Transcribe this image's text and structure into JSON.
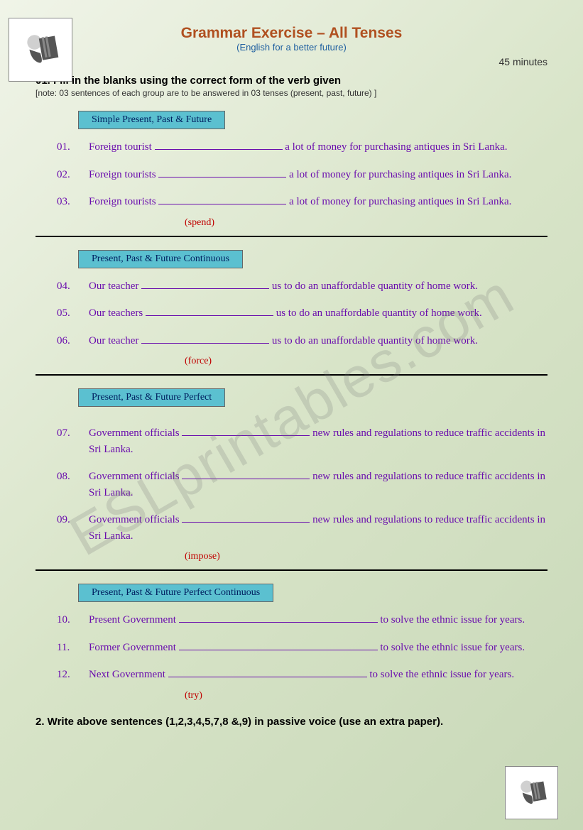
{
  "header": {
    "title": "Grammar Exercise –  All Tenses",
    "subtitle": "(English for a better future)",
    "time": "45 minutes"
  },
  "instruction": {
    "main": "01.  Fill in the blanks using the correct form of the verb given",
    "note": "[note: 03 sentences of each group are to be answered in 03 tenses (present, past, future) ]"
  },
  "sections": [
    {
      "label": "Simple Present, Past & Future",
      "verb": "(spend)",
      "questions": [
        {
          "num": "01.",
          "pre": "Foreign tourist ",
          "post": " a lot of money for purchasing antiques in Sri Lanka.",
          "blankClass": "blank"
        },
        {
          "num": "02.",
          "pre": "Foreign tourists ",
          "post": " a lot of money for purchasing antiques in Sri Lanka.",
          "blankClass": "blank"
        },
        {
          "num": "03.",
          "pre": "Foreign tourists ",
          "post": " a lot of money for purchasing antiques in Sri Lanka.",
          "blankClass": "blank"
        }
      ]
    },
    {
      "label": "Present, Past & Future Continuous",
      "verb": "(force)",
      "questions": [
        {
          "num": "04.",
          "pre": "Our teacher  ",
          "post": " us to do an unaffordable quantity of home work.",
          "blankClass": "blank"
        },
        {
          "num": "05.",
          "pre": "Our teachers  ",
          "post": " us to do an unaffordable quantity of home work.",
          "blankClass": "blank"
        },
        {
          "num": "06.",
          "pre": "Our teacher   ",
          "post": " us to do an unaffordable quantity of home work.",
          "blankClass": "blank"
        }
      ]
    },
    {
      "label": "Present, Past & Future Perfect",
      "verb": "(impose)",
      "questions": [
        {
          "num": "07.",
          "pre": "Government officials    ",
          "post": " new rules and regulations to reduce traffic accidents in Sri Lanka.",
          "blankClass": "blank"
        },
        {
          "num": "08.",
          "pre": "Government officials   ",
          "post": " new rules and regulations to reduce traffic accidents in Sri Lanka.",
          "blankClass": "blank"
        },
        {
          "num": "09.",
          "pre": "Government officials   ",
          "post": " new rules and regulations to reduce traffic accidents in Sri Lanka.",
          "blankClass": "blank"
        }
      ]
    },
    {
      "label": "Present, Past & Future Perfect Continuous",
      "verb": "(try)",
      "questions": [
        {
          "num": "10.",
          "pre": "Present Government   ",
          "post": " to solve the ethnic issue for years.",
          "blankClass": "blank blank-long"
        },
        {
          "num": "11.",
          "pre": "Former Government   ",
          "post": " to solve the ethnic issue for years.",
          "blankClass": "blank blank-long"
        },
        {
          "num": "12.",
          "pre": "Next Government    ",
          "post": " to solve the ethnic issue for years.",
          "blankClass": "blank blank-long"
        }
      ]
    }
  ],
  "finalInstruction": "2.  Write above sentences (1,2,3,4,5,7,8 &,9) in passive voice (use an extra paper).",
  "watermark": "ESLprintables.com"
}
